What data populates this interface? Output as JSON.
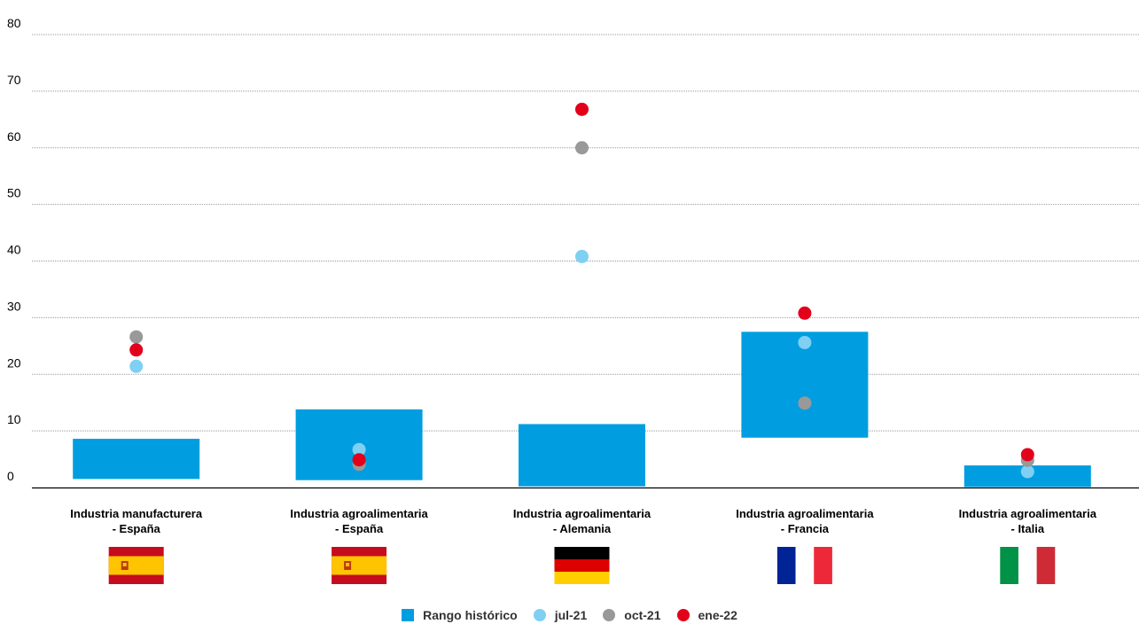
{
  "colors": {
    "range": "#009ee0",
    "jul21": "#7fd0f2",
    "oct21": "#999999",
    "ene22": "#e2001a",
    "grid": "#999999",
    "axis": "#000000"
  },
  "chart_data": {
    "type": "range-dot",
    "ylim": [
      0,
      80
    ],
    "yticks": [
      0,
      10,
      20,
      30,
      40,
      50,
      60,
      70,
      80
    ],
    "grid": true,
    "legend_position": "bottom",
    "categories": [
      {
        "line1": "Industria manufacturera",
        "line2": "- España",
        "flag": "spain-flag"
      },
      {
        "line1": "Industria agroalimentaria",
        "line2": "- España",
        "flag": "spain-flag"
      },
      {
        "line1": "Industria agroalimentaria",
        "line2": "- Alemania",
        "flag": "germany-flag"
      },
      {
        "line1": "Industria agroalimentaria",
        "line2": "- Francia",
        "flag": "france-flag"
      },
      {
        "line1": "Industria agroalimentaria",
        "line2": "- Italia",
        "flag": "italy-flag"
      }
    ],
    "range": {
      "name": "Rango histórico",
      "low": [
        1.5,
        1.3,
        0.2,
        8.8,
        0.1
      ],
      "high": [
        8.6,
        13.8,
        11.2,
        27.5,
        3.9
      ]
    },
    "series": [
      {
        "name": "jul-21",
        "values": [
          21.4,
          6.7,
          40.8,
          25.6,
          2.8
        ]
      },
      {
        "name": "oct-21",
        "values": [
          26.6,
          4.1,
          60.0,
          14.9,
          4.8
        ]
      },
      {
        "name": "ene-22",
        "values": [
          24.3,
          4.9,
          66.8,
          30.8,
          5.8
        ]
      }
    ]
  },
  "legend": {
    "range_label": "Rango histórico",
    "jul_label": "jul-21",
    "oct_label": "oct-21",
    "ene_label": "ene-22"
  }
}
